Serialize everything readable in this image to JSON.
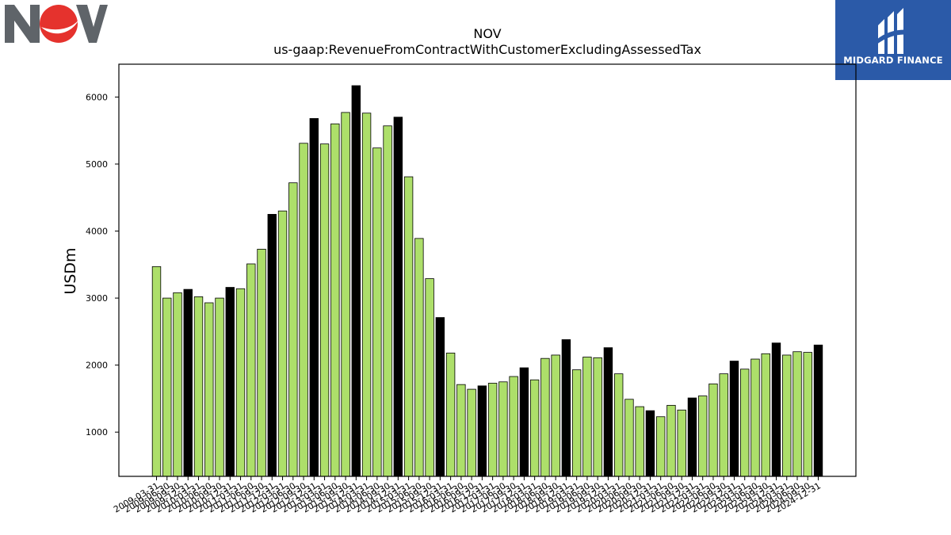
{
  "logos": {
    "left_name": "NOV",
    "right_text": "MIDGARD FINANCE"
  },
  "colors": {
    "bar_fill": "#addf6a",
    "bar_highlight": "#000000",
    "bar_edge": "#000000",
    "logo_right_bg": "#2b5aa8",
    "logo_left_gray": "#5f6469",
    "logo_left_red": "#e5322d"
  },
  "chart_data": {
    "type": "bar",
    "title": "NOV",
    "subtitle": "us-gaap:RevenueFromContractWithCustomerExcludingAssessedTax",
    "xlabel": "",
    "ylabel": "USDm",
    "ylim": [
      340,
      6490
    ],
    "yticks": [
      1000,
      2000,
      3000,
      4000,
      5000,
      6000
    ],
    "grid": false,
    "legend": "none",
    "categories": [
      "2009-03-31",
      "2009-06-30",
      "2009-09-30",
      "2009-12-31",
      "2010-03-31",
      "2010-06-30",
      "2010-09-30",
      "2010-12-31",
      "2011-03-31",
      "2011-06-30",
      "2011-09-30",
      "2011-12-31",
      "2012-03-31",
      "2012-06-30",
      "2012-09-30",
      "2012-12-31",
      "2013-03-31",
      "2013-06-30",
      "2013-09-30",
      "2013-12-31",
      "2014-03-31",
      "2014-06-30",
      "2014-09-30",
      "2014-12-31",
      "2015-03-31",
      "2015-06-30",
      "2015-09-30",
      "2015-12-31",
      "2016-03-31",
      "2016-06-30",
      "2016-09-30",
      "2016-12-31",
      "2017-03-31",
      "2017-06-30",
      "2017-09-30",
      "2017-12-31",
      "2018-03-31",
      "2018-06-30",
      "2018-09-30",
      "2018-12-31",
      "2019-03-31",
      "2019-06-30",
      "2019-09-30",
      "2019-12-31",
      "2020-03-31",
      "2020-06-30",
      "2020-09-30",
      "2020-12-31",
      "2021-03-31",
      "2021-06-30",
      "2021-09-30",
      "2021-12-31",
      "2022-03-31",
      "2022-06-30",
      "2022-09-30",
      "2022-12-31",
      "2023-03-31",
      "2023-06-30",
      "2023-09-30",
      "2023-12-31",
      "2024-03-31",
      "2024-06-30",
      "2024-09-30",
      "2024-12-31"
    ],
    "values": [
      3470,
      3000,
      3080,
      3130,
      3020,
      2930,
      3000,
      3160,
      3140,
      3510,
      3730,
      4250,
      4300,
      4720,
      5310,
      5680,
      5300,
      5600,
      5770,
      6170,
      5760,
      5240,
      5570,
      5700,
      4810,
      3890,
      3290,
      2710,
      2180,
      1710,
      1640,
      1690,
      1730,
      1750,
      1830,
      1960,
      1780,
      2100,
      2150,
      2380,
      1930,
      2120,
      2110,
      2260,
      1870,
      1490,
      1380,
      1320,
      1230,
      1400,
      1330,
      1510,
      1540,
      1720,
      1870,
      2060,
      1940,
      2090,
      2170,
      2330,
      2150,
      2200,
      2190,
      2300
    ],
    "highlighted": [
      "2009-12-31",
      "2010-12-31",
      "2011-12-31",
      "2012-12-31",
      "2013-12-31",
      "2014-12-31",
      "2015-12-31",
      "2016-12-31",
      "2017-12-31",
      "2018-12-31",
      "2019-12-31",
      "2020-12-31",
      "2021-12-31",
      "2022-12-31",
      "2023-12-31",
      "2024-12-31"
    ]
  }
}
